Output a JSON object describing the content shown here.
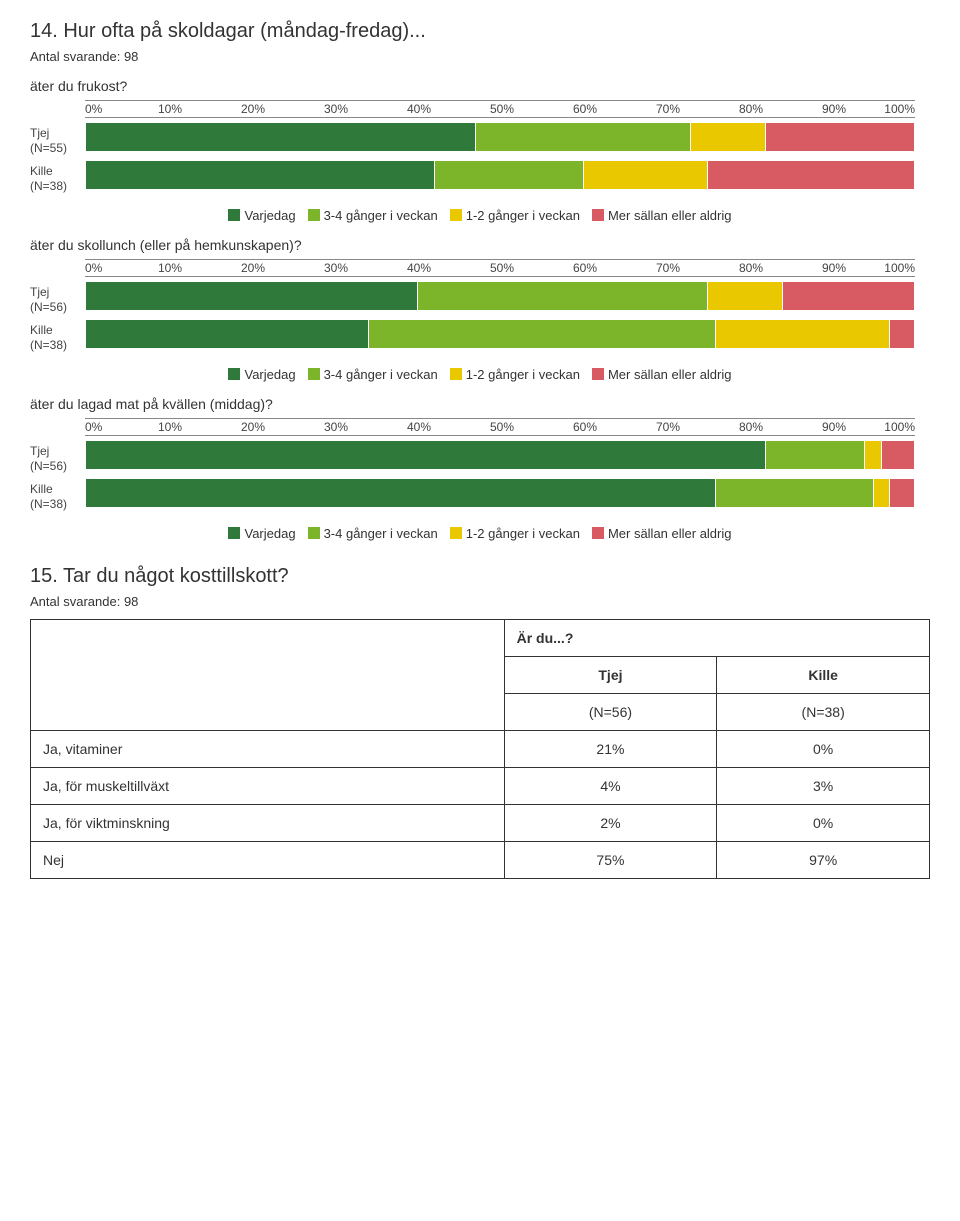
{
  "q14": {
    "title": "14. Hur ofta på skoldagar (måndag-fredag)...",
    "respondents": "Antal svarande: 98",
    "axis_labels": [
      "0%",
      "10%",
      "20%",
      "30%",
      "40%",
      "50%",
      "60%",
      "70%",
      "80%",
      "90%",
      "100%"
    ],
    "legend_items": [
      {
        "color": "#2f7a3a",
        "label": "Varjedag"
      },
      {
        "color": "#7cb52a",
        "label": "3-4 gånger i veckan"
      },
      {
        "color": "#e9c800",
        "label": "1-2 gånger i veckan"
      },
      {
        "color": "#d85a62",
        "label": "Mer sällan eller aldrig"
      }
    ],
    "panels": [
      {
        "question": "äter du frukost?",
        "rows": [
          {
            "label_line1": "Tjej",
            "label_line2": "(N=55)",
            "segments": [
              {
                "color": "#2f7a3a",
                "pct": 47
              },
              {
                "color": "#7cb52a",
                "pct": 26
              },
              {
                "color": "#e9c800",
                "pct": 9
              },
              {
                "color": "#d85a62",
                "pct": 18
              }
            ]
          },
          {
            "label_line1": "Kille",
            "label_line2": "(N=38)",
            "segments": [
              {
                "color": "#2f7a3a",
                "pct": 42
              },
              {
                "color": "#7cb52a",
                "pct": 18
              },
              {
                "color": "#e9c800",
                "pct": 15
              },
              {
                "color": "#d85a62",
                "pct": 25
              }
            ]
          }
        ]
      },
      {
        "question": "äter du skollunch (eller på hemkunskapen)?",
        "rows": [
          {
            "label_line1": "Tjej",
            "label_line2": "(N=56)",
            "segments": [
              {
                "color": "#2f7a3a",
                "pct": 40
              },
              {
                "color": "#7cb52a",
                "pct": 35
              },
              {
                "color": "#e9c800",
                "pct": 9
              },
              {
                "color": "#d85a62",
                "pct": 16
              }
            ]
          },
          {
            "label_line1": "Kille",
            "label_line2": "(N=38)",
            "segments": [
              {
                "color": "#2f7a3a",
                "pct": 34
              },
              {
                "color": "#7cb52a",
                "pct": 42
              },
              {
                "color": "#e9c800",
                "pct": 21
              },
              {
                "color": "#d85a62",
                "pct": 3
              }
            ]
          }
        ]
      },
      {
        "question": "äter du lagad mat på kvällen (middag)?",
        "rows": [
          {
            "label_line1": "Tjej",
            "label_line2": "(N=56)",
            "segments": [
              {
                "color": "#2f7a3a",
                "pct": 82
              },
              {
                "color": "#7cb52a",
                "pct": 12
              },
              {
                "color": "#e9c800",
                "pct": 2
              },
              {
                "color": "#d85a62",
                "pct": 4
              }
            ]
          },
          {
            "label_line1": "Kille",
            "label_line2": "(N=38)",
            "segments": [
              {
                "color": "#2f7a3a",
                "pct": 76
              },
              {
                "color": "#7cb52a",
                "pct": 19
              },
              {
                "color": "#e9c800",
                "pct": 2
              },
              {
                "color": "#d85a62",
                "pct": 3
              }
            ]
          }
        ]
      }
    ]
  },
  "q15": {
    "title": "15. Tar du något kosttillskott?",
    "respondents": "Antal svarande: 98",
    "header_main": "Är du...?",
    "columns": [
      {
        "label": "Tjej",
        "n": "(N=56)"
      },
      {
        "label": "Kille",
        "n": "(N=38)"
      }
    ],
    "rows": [
      {
        "label": "Ja, vitaminer",
        "values": [
          "21%",
          "0%"
        ]
      },
      {
        "label": "Ja, för muskeltillväxt",
        "values": [
          "4%",
          "3%"
        ]
      },
      {
        "label": "Ja, för viktminskning",
        "values": [
          "2%",
          "0%"
        ]
      },
      {
        "label": "Nej",
        "values": [
          "75%",
          "97%"
        ]
      }
    ]
  }
}
